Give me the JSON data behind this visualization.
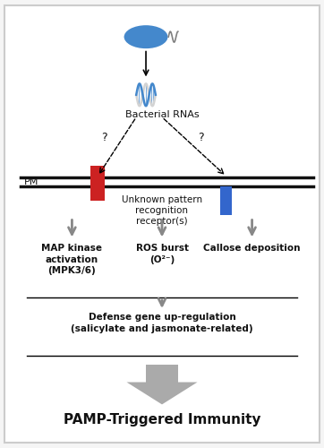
{
  "bg_color": "#f5f5f5",
  "border_color": "#cccccc",
  "title": "PAMP-Triggered Immunity",
  "bacterial_rnas_label": "Bacterial RNAs",
  "pm_label": "PM",
  "receptor_label": "Unknown pattern\nrecognition\nreceptor(s)",
  "map_label": "MAP kinase\nactivation\n(MPK3/6)",
  "ros_label": "ROS burst\n(O²⁻)",
  "callose_label": "Callose deposition",
  "defense_label": "Defense gene up-regulation\n(salicylate and jasmonate-related)",
  "arrow_gray": "#888888",
  "red_bar_color": "#cc2222",
  "blue_bar_color": "#3366cc",
  "bacterium_color": "#4488cc",
  "rna_color": "#4488cc",
  "pm_color": "#111111",
  "text_color": "#111111",
  "big_arrow_color": "#aaaaaa"
}
